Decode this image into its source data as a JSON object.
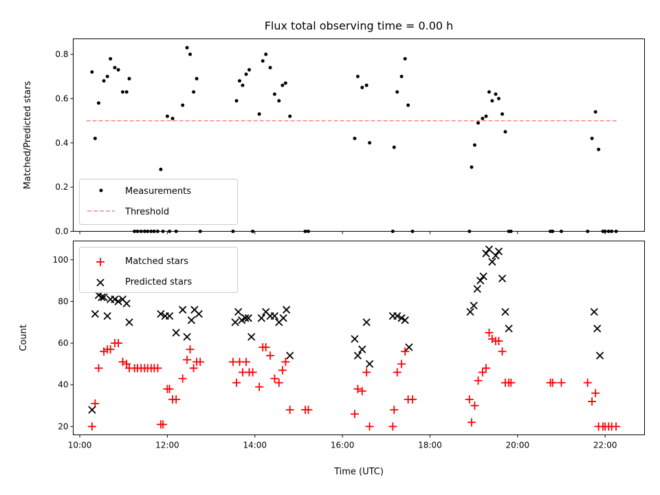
{
  "chart_data": [
    {
      "type": "scatter",
      "title": "Flux total observing time = 0.00 h",
      "xlabel": "",
      "ylabel": "Matched/Predicted stars",
      "xlim": [
        9.85,
        22.9
      ],
      "ylim": [
        0,
        0.87
      ],
      "yticks": [
        0.0,
        0.2,
        0.4,
        0.6,
        0.8
      ],
      "ytick_labels": [
        "0.0",
        "0.2",
        "0.4",
        "0.6",
        "0.8"
      ],
      "legend_position": "lower-left",
      "series": [
        {
          "name": "Measurements",
          "marker": "dot",
          "color": "#000000",
          "x": [
            10.28,
            10.35,
            10.43,
            10.55,
            10.63,
            10.7,
            10.8,
            10.88,
            10.98,
            11.07,
            11.13,
            11.25,
            11.32,
            11.4,
            11.48,
            11.55,
            11.63,
            11.7,
            11.78,
            11.85,
            11.9,
            12.0,
            12.05,
            12.12,
            12.2,
            12.35,
            12.45,
            12.52,
            12.6,
            12.67,
            12.75,
            13.5,
            13.58,
            13.65,
            13.72,
            13.8,
            13.87,
            13.95,
            14.1,
            14.18,
            14.25,
            14.35,
            14.45,
            14.55,
            14.63,
            14.7,
            14.8,
            15.15,
            15.22,
            16.28,
            16.35,
            16.45,
            16.55,
            16.62,
            17.15,
            17.18,
            17.25,
            17.35,
            17.43,
            17.5,
            17.6,
            18.9,
            18.95,
            19.02,
            19.1,
            19.2,
            19.28,
            19.35,
            19.42,
            19.5,
            19.57,
            19.65,
            19.72,
            19.8,
            19.85,
            20.75,
            20.8,
            21.0,
            21.6,
            21.7,
            21.78,
            21.85,
            21.95,
            22.0,
            22.08,
            22.15,
            22.25
          ],
          "y": [
            0.72,
            0.42,
            0.58,
            0.68,
            0.7,
            0.78,
            0.74,
            0.73,
            0.63,
            0.63,
            0.69,
            0.0,
            0.0,
            0.0,
            0.0,
            0.0,
            0.0,
            0.0,
            0.0,
            0.28,
            0.0,
            0.52,
            0.0,
            0.51,
            0.0,
            0.57,
            0.83,
            0.8,
            0.63,
            0.69,
            0.0,
            0.0,
            0.59,
            0.68,
            0.66,
            0.71,
            0.73,
            0.0,
            0.53,
            0.77,
            0.8,
            0.74,
            0.62,
            0.59,
            0.66,
            0.67,
            0.52,
            0.0,
            0.0,
            0.42,
            0.7,
            0.65,
            0.66,
            0.4,
            0.0,
            0.38,
            0.63,
            0.7,
            0.78,
            0.57,
            0.0,
            0.0,
            0.29,
            0.39,
            0.49,
            0.51,
            0.52,
            0.63,
            0.59,
            0.62,
            0.6,
            0.53,
            0.45,
            0.0,
            0.0,
            0.0,
            0.0,
            0.0,
            0.0,
            0.42,
            0.54,
            0.37,
            0.0,
            0.0,
            0.0,
            0.0,
            0.0
          ]
        },
        {
          "name": "Threshold",
          "marker": "dashed-line",
          "color": "#ff7f7f",
          "x": [
            10.15,
            22.3
          ],
          "y": [
            0.5,
            0.5
          ]
        }
      ]
    },
    {
      "type": "scatter",
      "title": "",
      "xlabel": "Time (UTC)",
      "ylabel": "Count",
      "xlim": [
        9.85,
        22.9
      ],
      "ylim": [
        16,
        109
      ],
      "xticks": [
        10,
        12,
        14,
        16,
        18,
        20,
        22
      ],
      "xtick_labels": [
        "10:00",
        "12:00",
        "14:00",
        "16:00",
        "18:00",
        "20:00",
        "22:00"
      ],
      "yticks": [
        20,
        40,
        60,
        80,
        100
      ],
      "ytick_labels": [
        "20",
        "40",
        "60",
        "80",
        "100"
      ],
      "legend_position": "upper-left",
      "series": [
        {
          "name": "Matched stars",
          "marker": "plus",
          "color": "#ff0000",
          "x": [
            10.28,
            10.35,
            10.43,
            10.55,
            10.63,
            10.7,
            10.8,
            10.88,
            10.98,
            11.07,
            11.13,
            11.25,
            11.32,
            11.4,
            11.48,
            11.55,
            11.63,
            11.7,
            11.78,
            11.85,
            11.9,
            12.0,
            12.05,
            12.12,
            12.2,
            12.35,
            12.45,
            12.52,
            12.6,
            12.67,
            12.75,
            13.5,
            13.58,
            13.65,
            13.72,
            13.8,
            13.87,
            13.95,
            14.1,
            14.18,
            14.25,
            14.35,
            14.45,
            14.55,
            14.63,
            14.7,
            14.8,
            15.15,
            15.22,
            16.28,
            16.35,
            16.45,
            16.55,
            16.62,
            17.15,
            17.18,
            17.25,
            17.35,
            17.43,
            17.5,
            17.6,
            18.9,
            18.95,
            19.02,
            19.1,
            19.2,
            19.28,
            19.35,
            19.42,
            19.5,
            19.57,
            19.65,
            19.72,
            19.8,
            19.85,
            20.75,
            20.8,
            21.0,
            21.6,
            21.7,
            21.78,
            21.85,
            21.95,
            22.0,
            22.08,
            22.15,
            22.25
          ],
          "y": [
            20,
            31,
            48,
            56,
            57,
            57,
            60,
            60,
            51,
            50,
            48,
            48,
            48,
            48,
            48,
            48,
            48,
            48,
            48,
            21,
            21,
            38,
            38,
            33,
            33,
            43,
            52,
            57,
            48,
            51,
            51,
            51,
            41,
            51,
            46,
            51,
            46,
            46,
            39,
            58,
            58,
            54,
            43,
            41,
            47,
            51,
            28,
            28,
            28,
            26,
            38,
            37,
            46,
            20,
            20,
            28,
            46,
            50,
            56,
            33,
            33,
            33,
            22,
            30,
            42,
            46,
            48,
            65,
            62,
            61,
            61,
            56,
            41,
            41,
            41,
            41,
            41,
            41,
            41,
            32,
            36,
            20,
            20,
            20,
            20,
            20,
            20
          ]
        },
        {
          "name": "Predicted stars",
          "marker": "x",
          "color": "#000000",
          "x": [
            10.28,
            10.35,
            10.43,
            10.5,
            10.55,
            10.63,
            10.7,
            10.8,
            10.88,
            10.98,
            11.07,
            11.13,
            11.85,
            11.95,
            12.05,
            12.2,
            12.35,
            12.45,
            12.55,
            12.62,
            12.72,
            13.55,
            13.62,
            13.7,
            13.78,
            13.85,
            13.92,
            14.15,
            14.25,
            14.35,
            14.45,
            14.55,
            14.65,
            14.72,
            14.8,
            16.28,
            16.35,
            16.45,
            16.55,
            16.62,
            17.15,
            17.25,
            17.35,
            17.43,
            17.52,
            18.92,
            19.0,
            19.08,
            19.15,
            19.22,
            19.28,
            19.35,
            19.42,
            19.5,
            19.57,
            19.65,
            19.72,
            19.8,
            21.75,
            21.82,
            21.88
          ],
          "y": [
            28,
            74,
            83,
            82,
            82,
            73,
            81,
            81,
            80,
            81,
            79,
            70,
            74,
            73,
            73,
            65,
            76,
            63,
            71,
            76,
            74,
            70,
            75,
            71,
            72,
            72,
            63,
            72,
            75,
            73,
            73,
            70,
            72,
            76,
            54,
            62,
            54,
            57,
            70,
            50,
            73,
            73,
            72,
            71,
            58,
            75,
            78,
            86,
            90,
            92,
            103,
            105,
            99,
            102,
            104,
            91,
            75,
            67,
            75,
            67,
            54
          ]
        }
      ]
    }
  ]
}
